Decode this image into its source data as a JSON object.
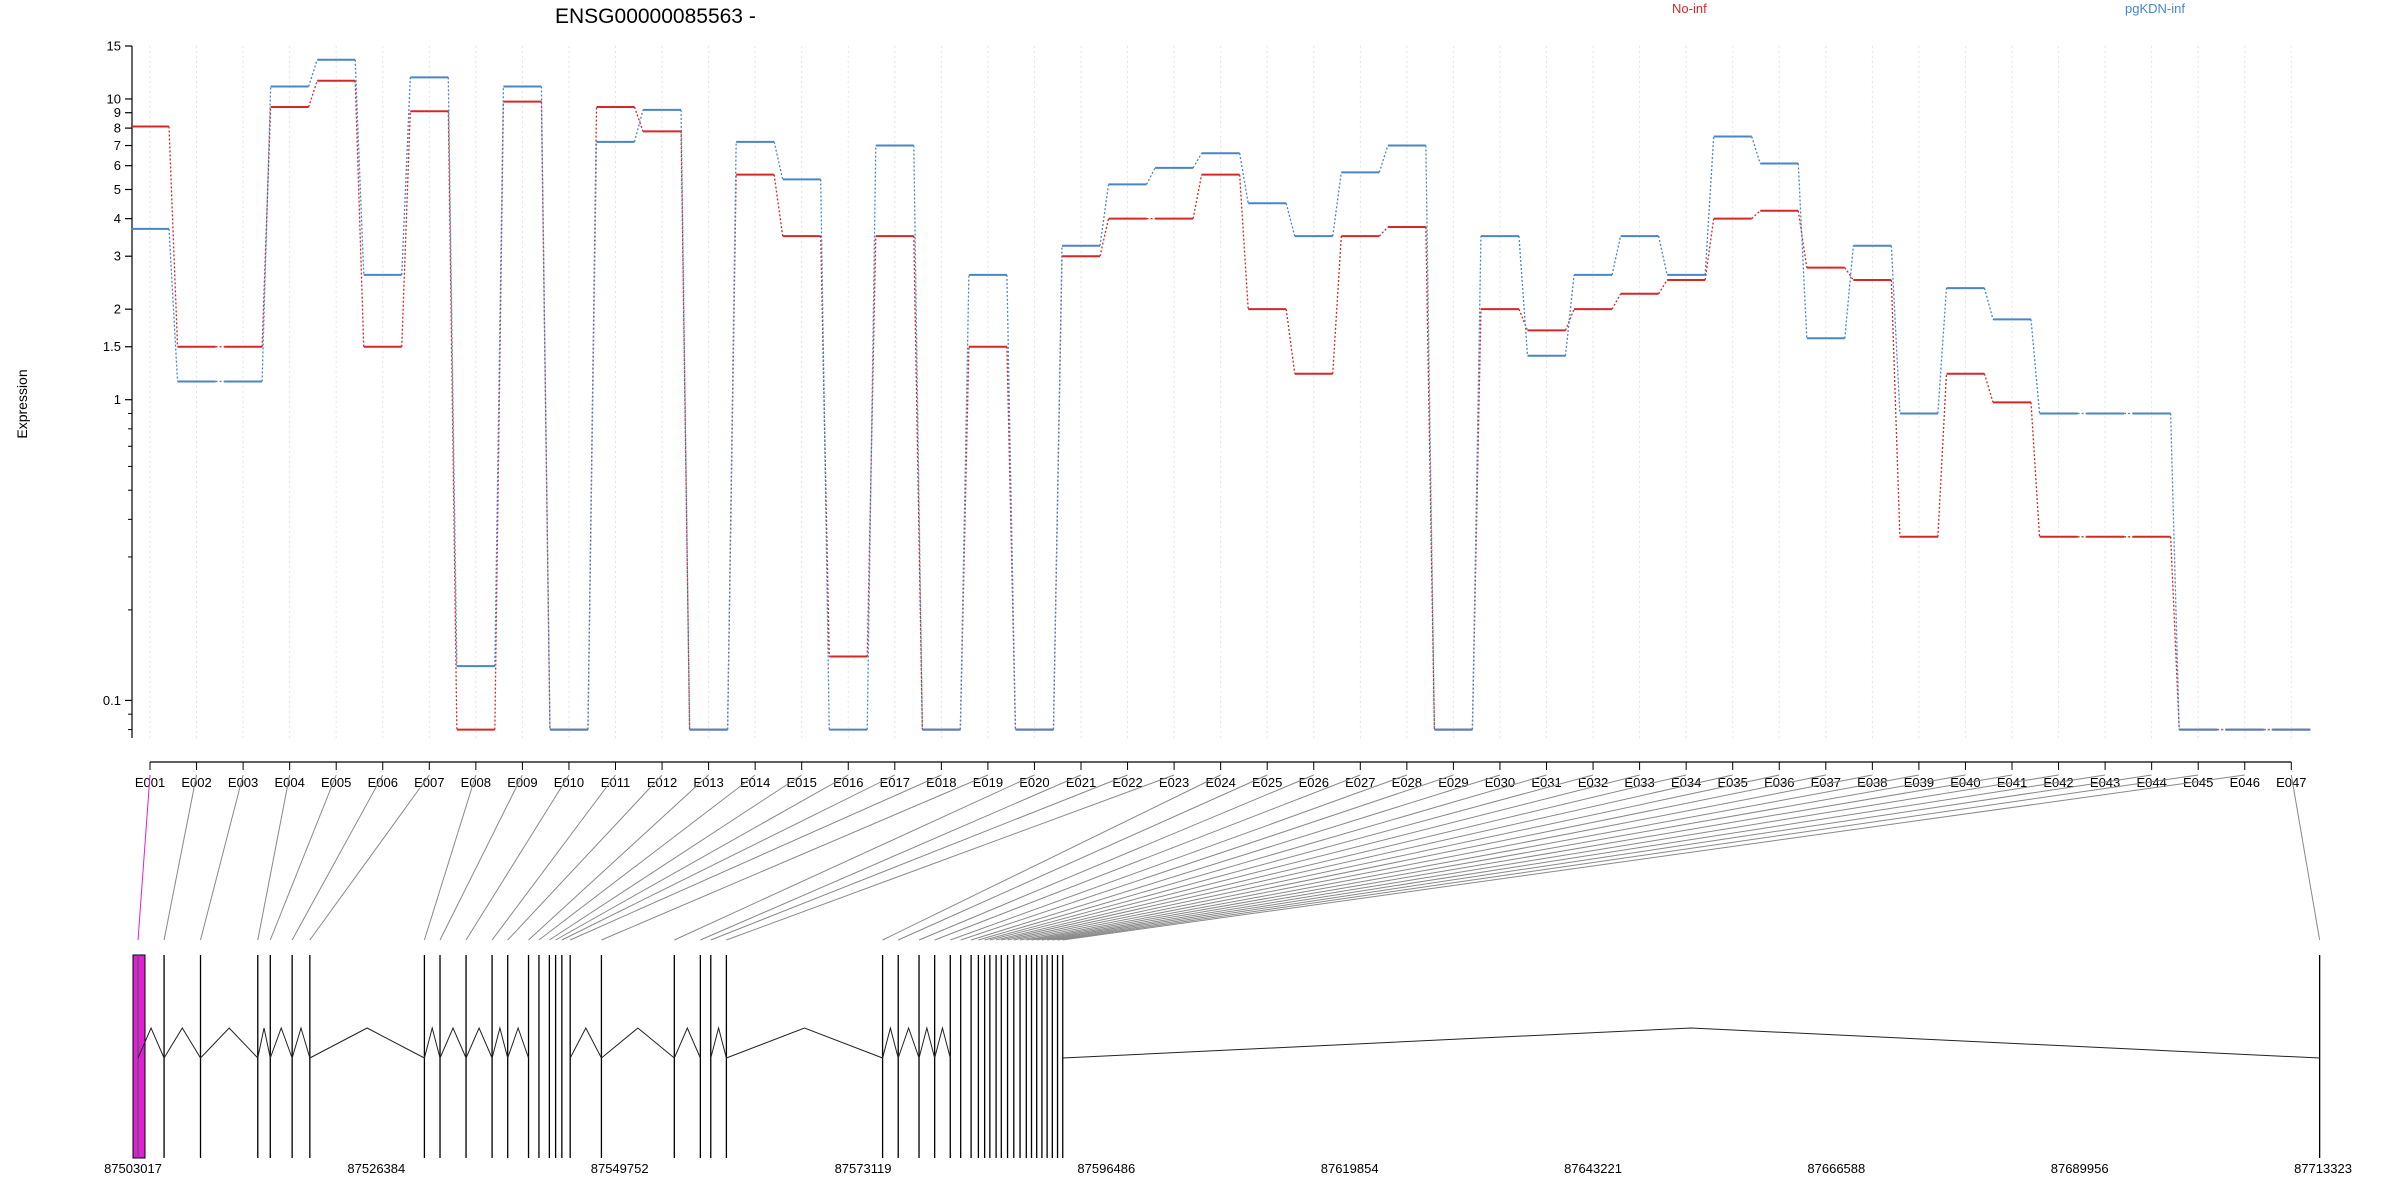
{
  "title": "ENSG00000085563 -",
  "ylabel": "Expression",
  "chart_data": {
    "type": "line",
    "yscale": "log",
    "ylim": [
      0.075,
      15
    ],
    "yticks": [
      0.1,
      1,
      1.5,
      2,
      3,
      4,
      5,
      6,
      7,
      8,
      9,
      10,
      15
    ],
    "ytick_labels": [
      "0.1",
      "1",
      "1.5",
      "2",
      "3",
      "4",
      "5",
      "6",
      "7",
      "8",
      "9",
      "10",
      "15"
    ],
    "categories": [
      "E001",
      "E002",
      "E003",
      "E004",
      "E005",
      "E006",
      "E007",
      "E008",
      "E009",
      "E010",
      "E011",
      "E012",
      "E013",
      "E014",
      "E015",
      "E016",
      "E017",
      "E018",
      "E019",
      "E020",
      "E021",
      "E022",
      "E023",
      "E024",
      "E025",
      "E026",
      "E027",
      "E028",
      "E029",
      "E030",
      "E031",
      "E032",
      "E033",
      "E034",
      "E035",
      "E036",
      "E037",
      "E038",
      "E039",
      "E040",
      "E041",
      "E042",
      "E043",
      "E044",
      "E045",
      "E046",
      "E047"
    ],
    "series": [
      {
        "name": "No-inf",
        "color": "#d62728",
        "values": [
          8.1,
          1.5,
          1.5,
          9.4,
          11.5,
          1.5,
          9.1,
          0.08,
          9.8,
          0.08,
          9.4,
          7.8,
          0.08,
          5.6,
          3.5,
          0.14,
          3.5,
          0.08,
          1.5,
          0.08,
          3.0,
          4.0,
          4.0,
          5.6,
          2.0,
          1.22,
          3.5,
          3.75,
          0.08,
          2.0,
          1.7,
          2.0,
          2.25,
          2.5,
          4.0,
          4.25,
          2.75,
          2.5,
          0.35,
          1.22,
          0.98,
          0.35,
          0.35,
          0.35,
          0.08,
          0.08,
          0.08
        ]
      },
      {
        "name": "pgKDN-inf",
        "color": "#4a86c5",
        "values": [
          3.7,
          1.15,
          1.15,
          11.0,
          13.5,
          2.6,
          11.8,
          0.13,
          11.0,
          0.08,
          7.2,
          9.2,
          0.08,
          7.2,
          5.4,
          0.08,
          7.0,
          0.08,
          2.6,
          0.08,
          3.25,
          5.2,
          5.9,
          6.6,
          4.5,
          3.5,
          5.7,
          7.0,
          0.08,
          3.5,
          1.4,
          2.6,
          3.5,
          2.6,
          7.5,
          6.1,
          1.6,
          3.25,
          0.9,
          2.35,
          1.85,
          0.9,
          0.9,
          0.9,
          0.08,
          0.08,
          0.08
        ]
      }
    ],
    "legend": [
      "No-inf",
      "pgKDN-inf"
    ],
    "legend_placement": "top-right",
    "grid": "vertical-light"
  },
  "gene_model": {
    "coord_labels": [
      "87503017",
      "87526384",
      "87549752",
      "87573119",
      "87596486",
      "87619854",
      "87643221",
      "87666588",
      "87689956",
      "87713323"
    ],
    "range": [
      87503017,
      87713323
    ],
    "highlight_exon": "E001",
    "highlight_color": "#e020d8",
    "exon_positions": [
      87503500,
      87506000,
      87509500,
      87515000,
      87516200,
      87518300,
      87520000,
      87531000,
      87532500,
      87535000,
      87537500,
      87539000,
      87541000,
      87542000,
      87543000,
      87543600,
      87544200,
      87545000,
      87548000,
      87555000,
      87557500,
      87558500,
      87560000,
      87575000,
      87576500,
      87578500,
      87580000,
      87581500,
      87582500,
      87583500,
      87584200,
      87584800,
      87585300,
      87585900,
      87586400,
      87587000,
      87587600,
      87588200,
      87588800,
      87589300,
      87589800,
      87590300,
      87590800,
      87591300,
      87591800,
      87592300,
      87713000
    ]
  }
}
